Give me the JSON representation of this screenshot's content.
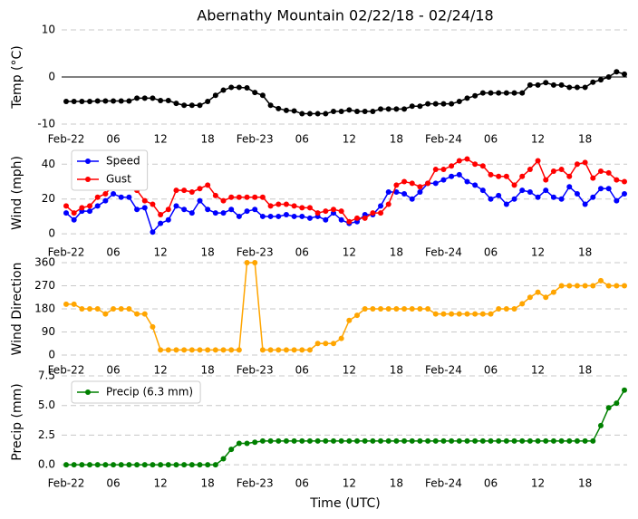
{
  "chart_data": {
    "type": "line",
    "title": "Abernathy Mountain 02/22/18 - 02/24/18",
    "xlabel": "Time (UTC)",
    "x": [
      0,
      1,
      2,
      3,
      4,
      5,
      6,
      7,
      8,
      9,
      10,
      11,
      12,
      13,
      14,
      15,
      16,
      17,
      18,
      19,
      20,
      21,
      22,
      23,
      24,
      25,
      26,
      27,
      28,
      29,
      30,
      31,
      32,
      33,
      34,
      35,
      36,
      37,
      38,
      39,
      40,
      41,
      42,
      43,
      44,
      45,
      46,
      47,
      48,
      49,
      50,
      51,
      52,
      53,
      54,
      55,
      56,
      57,
      58,
      59,
      60,
      61,
      62,
      63,
      64,
      65,
      66,
      67,
      68,
      69,
      70,
      71
    ],
    "xlim": [
      0,
      71
    ],
    "xticks": [
      {
        "value": 0,
        "label": "Feb-22"
      },
      {
        "value": 6,
        "label": "06"
      },
      12,
      18,
      {
        "value": 24,
        "label": "Feb-23"
      },
      {
        "value": 30,
        "label": "06"
      },
      {
        "value": 36,
        "label": "12"
      },
      {
        "value": 42,
        "label": "18"
      },
      {
        "value": 48,
        "label": "Feb-24"
      },
      {
        "value": 54,
        "label": "06"
      },
      {
        "value": 60,
        "label": "12"
      },
      {
        "value": 66,
        "label": "18"
      }
    ],
    "grid": true,
    "panels": [
      {
        "ylabel": "Temp (°C)",
        "ylim": [
          -10,
          10
        ],
        "yticks": [
          -10,
          0,
          10
        ],
        "hline": 0,
        "series": [
          {
            "color": "#000000",
            "values": [
              -5.2,
              -5.2,
              -5.2,
              -5.2,
              -5.1,
              -5.1,
              -5.1,
              -5.1,
              -5.1,
              -4.5,
              -4.5,
              -4.5,
              -5.0,
              -5.0,
              -5.6,
              -6.0,
              -6.0,
              -6.0,
              -5.2,
              -3.9,
              -2.8,
              -2.2,
              -2.2,
              -2.3,
              -3.3,
              -3.9,
              -6.0,
              -6.7,
              -7.1,
              -7.2,
              -7.8,
              -7.8,
              -7.8,
              -7.8,
              -7.3,
              -7.3,
              -7.0,
              -7.3,
              -7.3,
              -7.3,
              -6.8,
              -6.8,
              -6.8,
              -6.8,
              -6.2,
              -6.2,
              -5.7,
              -5.7,
              -5.7,
              -5.7,
              -5.2,
              -4.5,
              -4.0,
              -3.4,
              -3.4,
              -3.4,
              -3.4,
              -3.4,
              -3.4,
              -1.7,
              -1.7,
              -1.2,
              -1.7,
              -1.7,
              -2.2,
              -2.2,
              -2.2,
              -1.1,
              -0.6,
              0,
              1.1,
              0.6
            ]
          }
        ]
      },
      {
        "ylabel": "Wind (mph)",
        "ylim": [
          -2,
          49
        ],
        "yticks": [
          0,
          20,
          40
        ],
        "series": [
          {
            "name": "Speed",
            "color": "#0000ff",
            "values": [
              12,
              8,
              13,
              13,
              16,
              19,
              23,
              21,
              21,
              14,
              15,
              1,
              6,
              8,
              16,
              14,
              12,
              19,
              14,
              12,
              12,
              14,
              10,
              13,
              14,
              10,
              10,
              10,
              11,
              10,
              10,
              9,
              10,
              8,
              12,
              8,
              6,
              7,
              11,
              11,
              16,
              24,
              24,
              23,
              20,
              24,
              29,
              29,
              31,
              33,
              34,
              30,
              28,
              25,
              20,
              22,
              17,
              20,
              25,
              24,
              21,
              25,
              21,
              20,
              27,
              23,
              17,
              21,
              26,
              26,
              19,
              23
            ]
          },
          {
            "name": "Gust",
            "color": "#ff0000",
            "values": [
              16,
              12,
              15,
              16,
              21,
              23,
              28,
              27,
              27,
              25,
              19,
              17,
              11,
              14,
              25,
              25,
              24,
              26,
              28,
              22,
              19,
              21,
              21,
              21,
              21,
              21,
              16,
              17,
              17,
              16,
              15,
              15,
              12,
              13,
              14,
              13,
              7,
              9,
              9,
              12,
              12,
              17,
              28,
              30,
              29,
              27,
              29,
              37,
              37,
              39,
              42,
              43,
              40,
              39,
              34,
              33,
              33,
              28,
              33,
              37,
              42,
              31,
              36,
              37,
              33,
              40,
              41,
              32,
              36,
              35,
              31,
              30
            ]
          }
        ]
      },
      {
        "ylabel": "Wind Direction",
        "ylim": [
          0,
          360
        ],
        "yticks": [
          0,
          90,
          180,
          270,
          360
        ],
        "series": [
          {
            "color": "#ffa500",
            "values": [
              198,
              198,
              180,
              180,
              180,
              160,
              180,
              180,
              180,
              160,
              160,
              110,
              20,
              20,
              20,
              20,
              20,
              20,
              20,
              20,
              20,
              20,
              20,
              360,
              360,
              20,
              20,
              20,
              20,
              20,
              20,
              20,
              45,
              45,
              45,
              65,
              135,
              155,
              180,
              180,
              180,
              180,
              180,
              180,
              180,
              180,
              180,
              160,
              160,
              160,
              160,
              160,
              160,
              160,
              160,
              180,
              180,
              180,
              200,
              225,
              245,
              225,
              245,
              270,
              270,
              270,
              270,
              270,
              290,
              270,
              270,
              270
            ]
          }
        ]
      },
      {
        "ylabel": "Precip (mm)",
        "ylim": [
          -0.3,
          7.5
        ],
        "yticks": [
          {
            "value": 0,
            "label": "0.0"
          },
          2.5,
          {
            "value": 5,
            "label": "5.0"
          },
          {
            "value": 7.5,
            "label": "7.5"
          }
        ],
        "series": [
          {
            "name": "Precip (6.3 mm)",
            "color": "#008000",
            "values": [
              0,
              0,
              0,
              0,
              0,
              0,
              0,
              0,
              0,
              0,
              0,
              0,
              0,
              0,
              0,
              0,
              0,
              0,
              0,
              0,
              0.5,
              1.3,
              1.8,
              1.8,
              1.9,
              2,
              2,
              2,
              2,
              2,
              2,
              2,
              2,
              2,
              2,
              2,
              2,
              2,
              2,
              2,
              2,
              2,
              2,
              2,
              2,
              2,
              2,
              2,
              2,
              2,
              2,
              2,
              2,
              2,
              2,
              2,
              2,
              2,
              2,
              2,
              2,
              2,
              2,
              2,
              2,
              2,
              2,
              2,
              3.3,
              4.8,
              5.2,
              6.3
            ]
          }
        ]
      }
    ]
  }
}
